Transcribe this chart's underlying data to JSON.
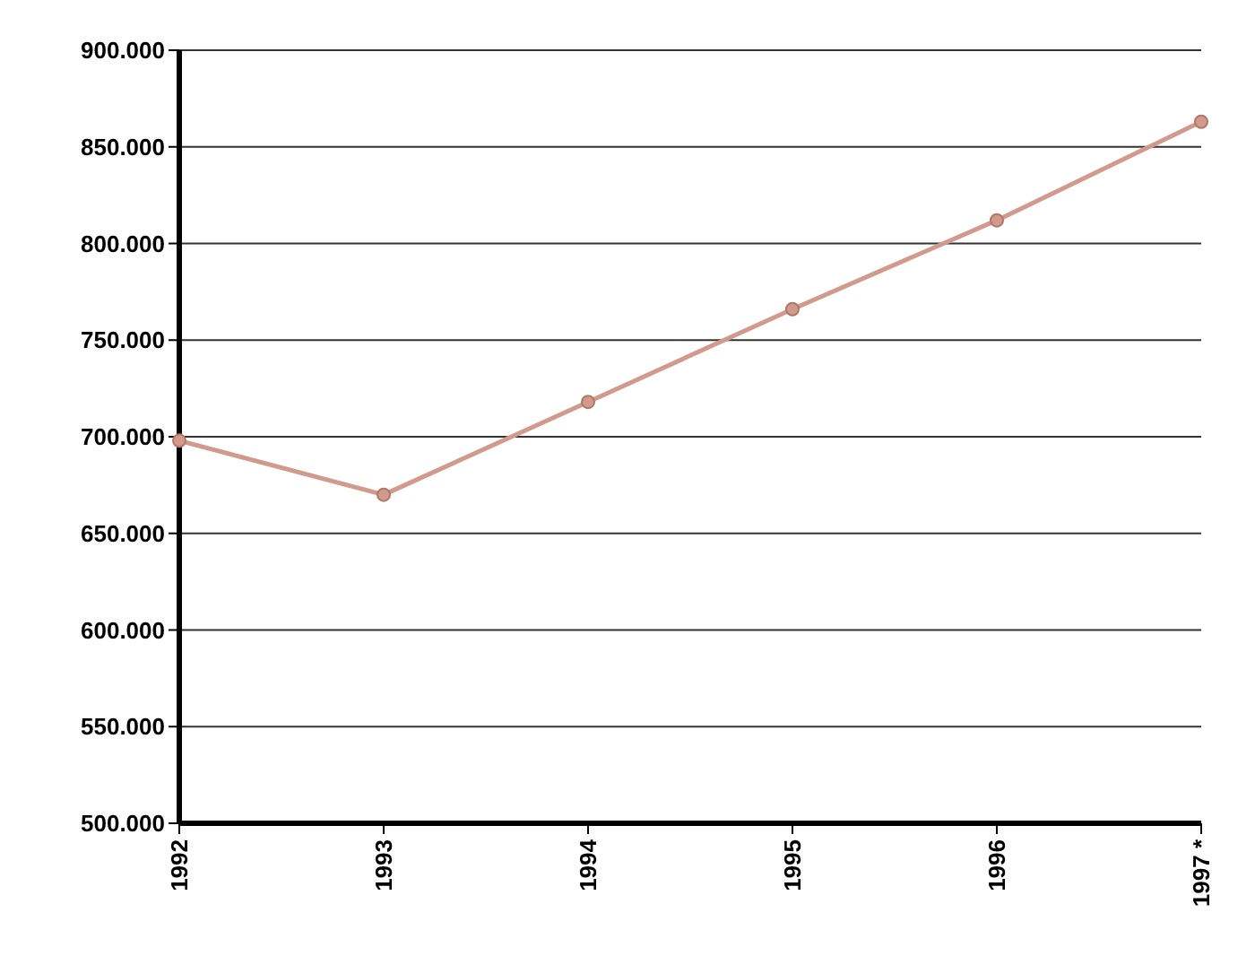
{
  "chart_data": {
    "type": "line",
    "categories": [
      "1992",
      "1993",
      "1994",
      "1995",
      "1996",
      "1997 *"
    ],
    "series": [
      {
        "color": "#d19a8c",
        "values": [
          698,
          670,
          718,
          766,
          812,
          863
        ]
      }
    ],
    "ylim": [
      500,
      900
    ],
    "yticks": [
      {
        "value": 500,
        "label": "500.000"
      },
      {
        "value": 550,
        "label": "550.000"
      },
      {
        "value": 600,
        "label": "600.000"
      },
      {
        "value": 650,
        "label": "650.000"
      },
      {
        "value": 700,
        "label": "700.000"
      },
      {
        "value": 750,
        "label": "750.000"
      },
      {
        "value": 800,
        "label": "800.000"
      },
      {
        "value": 850,
        "label": "850.000"
      },
      {
        "value": 900,
        "label": "900.000"
      }
    ],
    "grid": "y",
    "marker": "circle",
    "line_style": "solid"
  }
}
